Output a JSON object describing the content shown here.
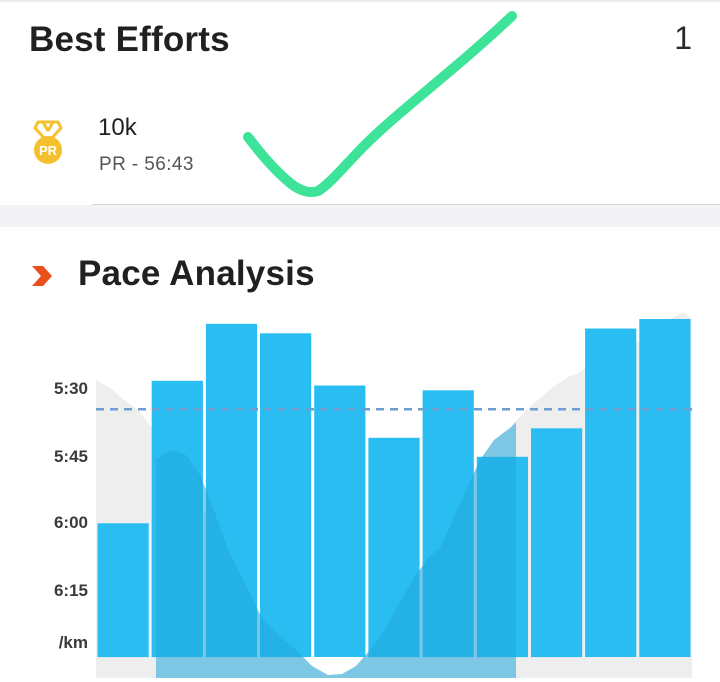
{
  "best_efforts": {
    "title": "Best Efforts",
    "count": "1",
    "medal_icon": "pr-medal-icon",
    "medal_text": "PR",
    "medal_color": "#f4c02e",
    "item": {
      "name": "10k",
      "pr": "PR - 56:43"
    }
  },
  "pace_analysis": {
    "title": "Pace Analysis",
    "icon": "chevron-right-icon",
    "accent_color": "#e8501c"
  },
  "chart_data": {
    "type": "bar",
    "y_axis": "pace (min/km), inverted — faster is higher",
    "y_ticks": [
      "5:30",
      "5:45",
      "6:00",
      "6:15"
    ],
    "y_unit": "/km",
    "ylim_seconds": [
      310,
      390
    ],
    "splits_pace_seconds": [
      357,
      327,
      315,
      317,
      328,
      339,
      329,
      343,
      337,
      316,
      314
    ],
    "average_pace_seconds": 333,
    "bar_color": "#29bdf2",
    "avg_line_color": "#6a9fd4",
    "elevation_color": "#eeeeee"
  },
  "annotation": {
    "type": "hand-drawn checkmark",
    "color": "#3ee39a"
  }
}
